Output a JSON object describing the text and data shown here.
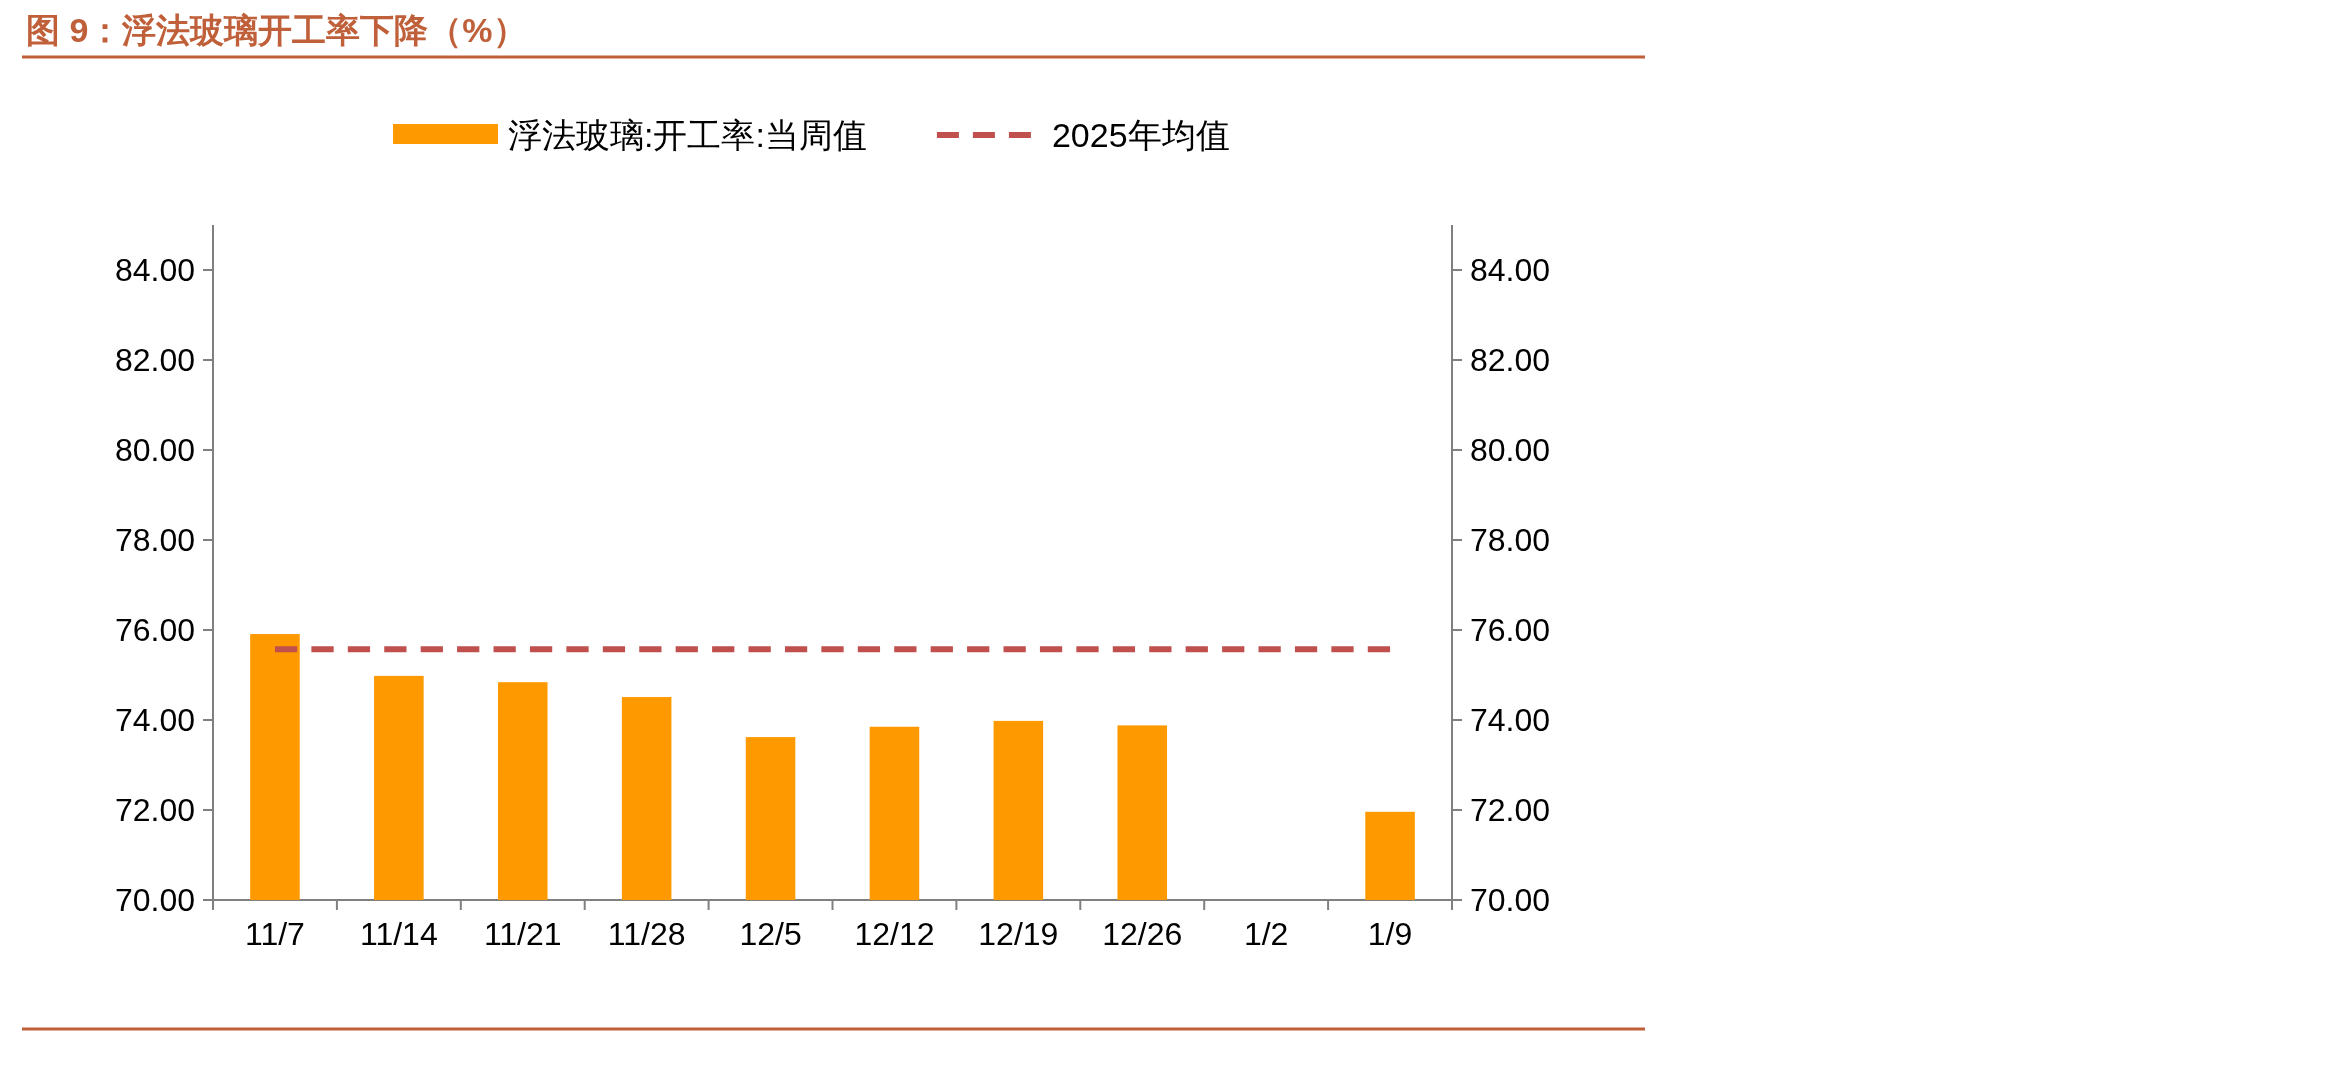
{
  "chart_data": {
    "type": "bar",
    "title": "图 9：浮法玻璃开工率下降（%）",
    "categories": [
      "11/7",
      "11/14",
      "11/21",
      "11/28",
      "12/5",
      "12/12",
      "12/19",
      "12/26",
      "1/2",
      "1/9"
    ],
    "series": [
      {
        "name": "浮法玻璃:开工率:当周值",
        "color": "#ff9900",
        "values": [
          75.91,
          74.98,
          74.84,
          74.51,
          73.62,
          73.85,
          73.98,
          73.88,
          null,
          71.96
        ]
      },
      {
        "name": "2025年均值",
        "type": "line",
        "color": "#c0504d",
        "line_style": "dashed",
        "values": [
          75.57,
          75.57,
          75.57,
          75.57,
          75.57,
          75.57,
          75.57,
          75.57,
          75.57,
          75.57
        ]
      }
    ],
    "ylim": [
      70,
      85
    ],
    "yticks": [
      {
        "value": 70,
        "label": "70.00"
      },
      {
        "value": 72,
        "label": "72.00"
      },
      {
        "value": 74,
        "label": "74.00"
      },
      {
        "value": 76,
        "label": "76.00"
      },
      {
        "value": 78,
        "label": "78.00"
      },
      {
        "value": 80,
        "label": "80.00"
      },
      {
        "value": 82,
        "label": "82.00"
      },
      {
        "value": 84,
        "label": "84.00"
      }
    ],
    "y2lim": [
      70,
      85
    ],
    "y2ticks": [
      {
        "value": 70,
        "label": "70.00"
      },
      {
        "value": 72,
        "label": "72.00"
      },
      {
        "value": 74,
        "label": "74.00"
      },
      {
        "value": 76,
        "label": "76.00"
      },
      {
        "value": 78,
        "label": "78.00"
      },
      {
        "value": 80,
        "label": "80.00"
      },
      {
        "value": 82,
        "label": "82.00"
      },
      {
        "value": 84,
        "label": "84.00"
      }
    ],
    "legend": "top",
    "grid": false
  }
}
